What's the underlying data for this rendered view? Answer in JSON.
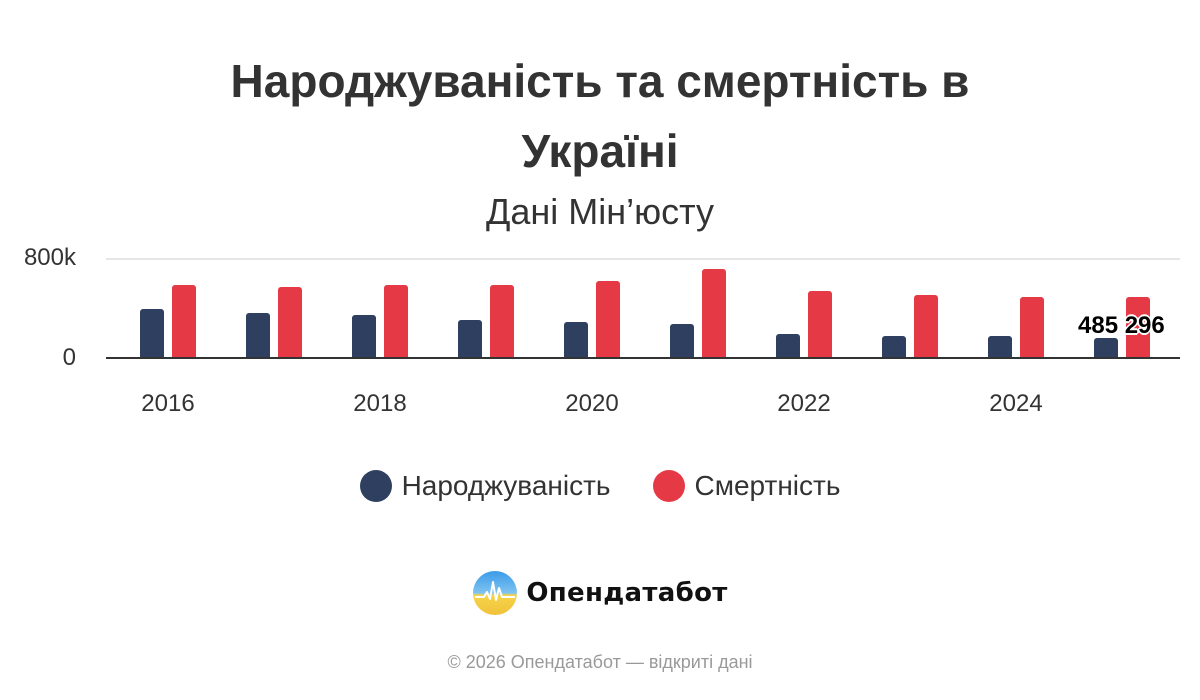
{
  "title_lines": [
    "Народжуваність та смертність в",
    "Україні"
  ],
  "subtitle": "Дані Мін’юсту",
  "colors": {
    "birth": "#2e3f60",
    "death": "#e63946",
    "grid": "#e6e6e6",
    "axis": "#333333"
  },
  "y_axis": {
    "ticks": [
      "0",
      "800k"
    ]
  },
  "x_axis": {
    "tick_labels": [
      "2016",
      "2018",
      "2020",
      "2022",
      "2024"
    ]
  },
  "legend": {
    "items": [
      {
        "label": "Народжуваність",
        "color": "#2e3f60"
      },
      {
        "label": "Смертність",
        "color": "#e63946"
      }
    ]
  },
  "data_label": "485 296",
  "brand": {
    "name": "Опендатабот"
  },
  "footer": "© 2026 Опендатабот — відкриті дані",
  "chart_data": {
    "type": "bar",
    "title": "Народжуваність та смертність в Україні",
    "subtitle": "Дані Мін’юсту",
    "xlabel": "",
    "ylabel": "",
    "categories": [
      "2016",
      "2017",
      "2018",
      "2019",
      "2020",
      "2021",
      "2022",
      "2023",
      "2024",
      "2025"
    ],
    "series": [
      {
        "name": "Народжуваність",
        "color": "#2e3f60",
        "values": [
          388000,
          356000,
          340000,
          307000,
          291000,
          275000,
          194000,
          178000,
          178000,
          162000
        ]
      },
      {
        "name": "Смертність",
        "color": "#e63946",
        "values": [
          582000,
          566000,
          582000,
          582000,
          614000,
          711000,
          533000,
          501000,
          485000,
          485296
        ]
      }
    ],
    "annotations": [
      {
        "category": "2025",
        "series": "Смертність",
        "text": "485 296"
      }
    ],
    "ylim": [
      0,
      800000
    ],
    "y_ticks": [
      "0",
      "800k"
    ],
    "x_tick_labels": [
      "2016",
      "2018",
      "2020",
      "2022",
      "2024"
    ],
    "grid": true,
    "legend_position": "bottom"
  }
}
